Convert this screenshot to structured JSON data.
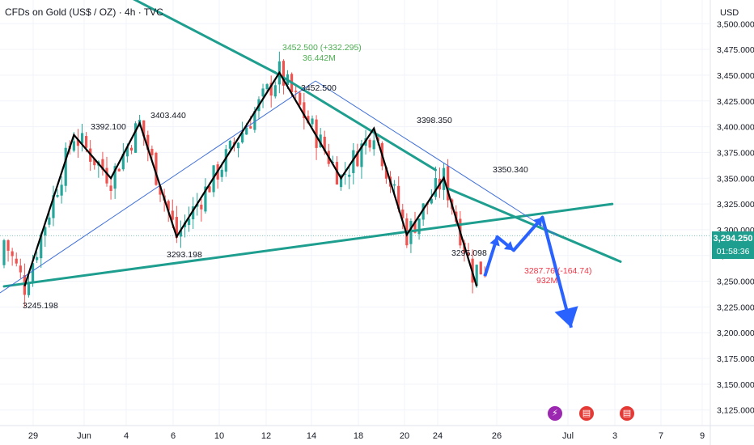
{
  "header": {
    "symbol_title": "CFDs on Gold (US$ / OZ) · 4h · TVC",
    "currency": "USD"
  },
  "last_price": {
    "value": "3,294.250",
    "countdown": "01:58:36"
  },
  "events": [
    {
      "icon": "lightning-icon"
    },
    {
      "icon": "us-flag-icon"
    },
    {
      "icon": "us-flag-icon"
    }
  ],
  "chart_data": {
    "type": "candlestick",
    "symbol": "CFDs on Gold (US$ / OZ)",
    "timeframe": "4h",
    "currency": "USD",
    "y_ticks": [
      3125,
      3150,
      3175,
      3200,
      3225,
      3250,
      3275,
      3300,
      3325,
      3350,
      3375,
      3400,
      3425,
      3450,
      3475,
      3500
    ],
    "y_tick_labels": [
      "3,125.000",
      "3,150.000",
      "3,175.000",
      "3,200.000",
      "3,225.000",
      "3,250.000",
      "3,275.000",
      "3,300.000",
      "3,325.000",
      "3,350.000",
      "3,375.000",
      "3,400.000",
      "3,425.000",
      "3,450.000",
      "3,475.000",
      "3,500.000"
    ],
    "ylim": [
      3113,
      3512
    ],
    "x_ticks": [
      "29",
      "Jun",
      "4",
      "6",
      "10",
      "12",
      "14",
      "18",
      "20",
      "24",
      "26",
      "Jul",
      "3",
      "7",
      "9"
    ],
    "last_price": 3294.25,
    "price_labels": [
      {
        "text": "3245.198",
        "value": 3245.198,
        "kind": "low"
      },
      {
        "text": "3392.100",
        "value": 3392.1,
        "kind": "high"
      },
      {
        "text": "3403.440",
        "value": 3403.44,
        "kind": "high"
      },
      {
        "text": "3293.198",
        "value": 3293.198,
        "kind": "low"
      },
      {
        "text": "3452.500",
        "value": 3452.5,
        "kind": "high"
      },
      {
        "text": "3398.350",
        "value": 3398.35,
        "kind": "high"
      },
      {
        "text": "3295.098",
        "value": 3295.098,
        "kind": "low"
      },
      {
        "text": "3350.340",
        "value": 3350.34,
        "kind": "high"
      }
    ],
    "annotations": [
      {
        "text": "3452.500 (+332.295)",
        "color": "#4caf50"
      },
      {
        "text": "36.442M",
        "color": "#4caf50"
      },
      {
        "text": "3287.76 (-164.74)",
        "color": "#f23645"
      },
      {
        "text": "932M",
        "color": "#f23645"
      }
    ],
    "zigzag_points": [
      {
        "bar": 5,
        "price": 3245.198
      },
      {
        "bar": 17,
        "price": 3392.1
      },
      {
        "bar": 26,
        "price": 3350
      },
      {
        "bar": 33,
        "price": 3403.44
      },
      {
        "bar": 42,
        "price": 3293.198
      },
      {
        "bar": 67,
        "price": 3452.5
      },
      {
        "bar": 82,
        "price": 3350
      },
      {
        "bar": 90,
        "price": 3398.35
      },
      {
        "bar": 98,
        "price": 3295.098
      },
      {
        "bar": 107,
        "price": 3350.34
      },
      {
        "bar": 115,
        "price": 3245
      }
    ],
    "trendlines": [
      {
        "from": {
          "bar": 0,
          "price": 3245
        },
        "to": {
          "bar": 148,
          "price": 3325
        },
        "color": "#1e9e8e"
      },
      {
        "from": {
          "bar": 31,
          "price": 3525
        },
        "to": {
          "bar": 66,
          "price": 3452.5
        },
        "color": "#1e9e8e"
      },
      {
        "from": {
          "bar": 66,
          "price": 3452.5
        },
        "to": {
          "bar": 105,
          "price": 3358
        },
        "color": "#1e9e8e"
      },
      {
        "from": {
          "bar": 108,
          "price": 3340
        },
        "to": {
          "bar": 150,
          "price": 3269
        },
        "color": "#1e9e8e"
      }
    ],
    "projection_path": [
      {
        "bar": 117,
        "price": 3255
      },
      {
        "bar": 120,
        "price": 3293
      },
      {
        "bar": 124,
        "price": 3280
      },
      {
        "bar": 131,
        "price": 3312
      },
      {
        "bar": 138,
        "price": 3205
      }
    ],
    "colors": {
      "up": "#26a69a",
      "down": "#ef5350",
      "trend": "#1e9e8e",
      "zigzag": "#000000",
      "channel": "#3f6fd8",
      "projection": "#2962ff"
    }
  }
}
